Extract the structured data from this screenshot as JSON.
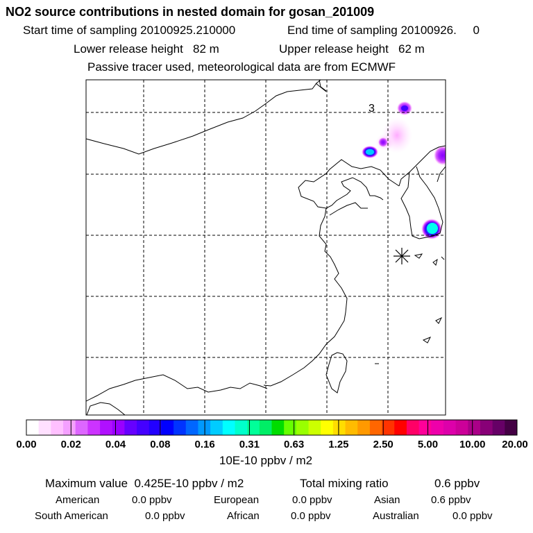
{
  "header": {
    "title": "NO2 source contributions in nested domain for gosan_201009",
    "start_time": "Start time of sampling 20100925.210000",
    "end_time": "End time of sampling 20100926.     0",
    "lower_release": "Lower release height   82 m",
    "upper_release": "Upper release height   62 m",
    "tracer_note": "Passive tracer used, meteorological data are from ECMWF"
  },
  "map": {
    "contour_label": "3",
    "station_marker": "asterisk",
    "plume_colors": [
      "#ff99ff",
      "#cc33ff",
      "#8800ff",
      "#3300ff",
      "#0099ff",
      "#00ffee"
    ]
  },
  "colorbar": {
    "colors": [
      "#ffffff",
      "#ffe0ff",
      "#ffc0ff",
      "#f4a0ff",
      "#dd66ff",
      "#cc33ff",
      "#b010ff",
      "#9900ff",
      "#6600ff",
      "#4400ff",
      "#2200ff",
      "#0000ff",
      "#0033ff",
      "#0066ff",
      "#0099ff",
      "#00ccff",
      "#00ffff",
      "#00ffcc",
      "#00ff99",
      "#00ee66",
      "#00dd00",
      "#66ff00",
      "#99ff00",
      "#ccff00",
      "#ffff00",
      "#ffdd00",
      "#ffbb00",
      "#ff9900",
      "#ff6600",
      "#ff3300",
      "#ff0000",
      "#ff0066",
      "#ff0099",
      "#ee00aa",
      "#dd00aa",
      "#cc0099",
      "#aa0088",
      "#880077",
      "#660066",
      "#440044"
    ],
    "tick_labels": [
      "0.00",
      "0.02",
      "0.04",
      "0.08",
      "0.16",
      "0.31",
      "0.63",
      "1.25",
      "2.50",
      "5.00",
      "10.00",
      "20.00"
    ],
    "unit": "10E-10 ppbv / m2"
  },
  "summary": {
    "max_value": "Maximum value  0.425E-10 ppbv / m2",
    "total_label": "Total mixing ratio",
    "total_value": "0.6 ppbv",
    "regions": [
      {
        "name": "American",
        "value": "0.0 ppbv"
      },
      {
        "name": "European",
        "value": "0.0 ppbv"
      },
      {
        "name": "Asian",
        "value": "0.6 ppbv"
      },
      {
        "name": "South American",
        "value": "0.0 ppbv"
      },
      {
        "name": "African",
        "value": "0.0 ppbv"
      },
      {
        "name": "Australian",
        "value": "0.0 ppbv"
      }
    ]
  }
}
